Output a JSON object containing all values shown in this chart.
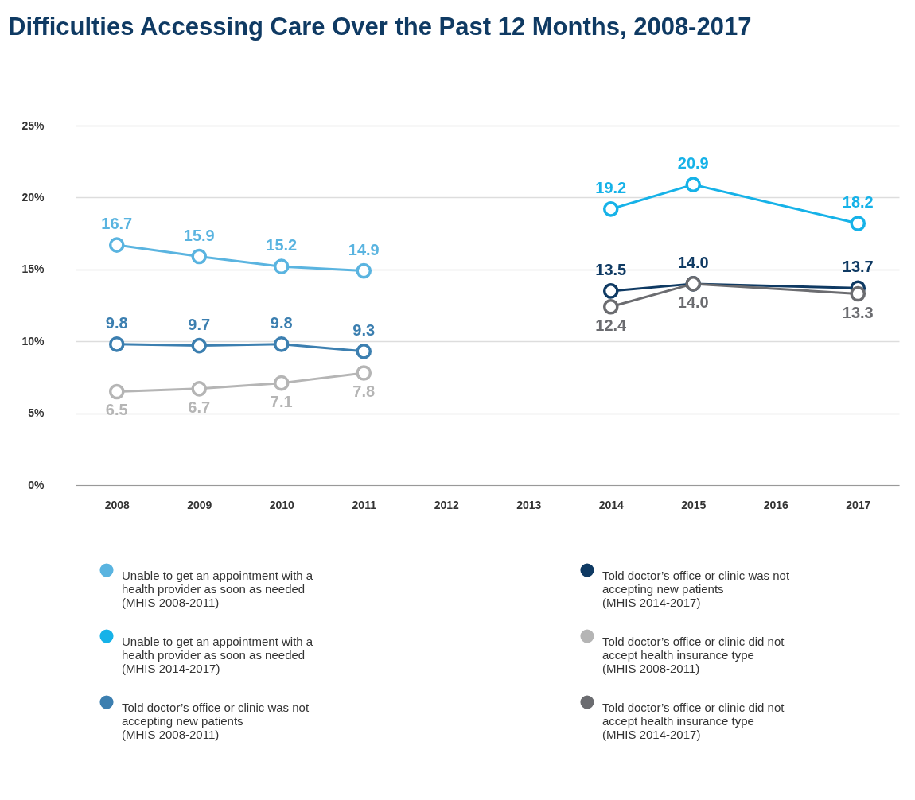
{
  "chart_data": {
    "type": "line",
    "title": "Difficulties Accessing Care Over the Past 12 Months, 2008-2017",
    "xlim": [
      2007.5,
      2017.5
    ],
    "xticks": [
      2008,
      2009,
      2010,
      2011,
      2012,
      2013,
      2014,
      2015,
      2016,
      2017
    ],
    "ylim": [
      0,
      25
    ],
    "yticks": [
      {
        "value": 0,
        "label": "0%"
      },
      {
        "value": 5,
        "label": "5%"
      },
      {
        "value": 10,
        "label": "10%"
      },
      {
        "value": 15,
        "label": "15%"
      },
      {
        "value": 20,
        "label": "20%"
      },
      {
        "value": 25,
        "label": "25%"
      }
    ],
    "grid": "y",
    "legend": "bottom",
    "marker": "circle",
    "line_style": "solid",
    "series": [
      {
        "name": "Unable to get an appointment with a health provider as soon as needed (MHIS 2008-2011)",
        "color": "#5ab4e0",
        "x": [
          2008,
          2009,
          2010,
          2011
        ],
        "values": [
          16.7,
          15.9,
          15.2,
          14.9
        ],
        "value_labels": [
          "16.7",
          "15.9",
          "15.2",
          "14.9"
        ]
      },
      {
        "name": "Unable to get an appointment with a health provider as soon as needed (MHIS 2014-2017)",
        "color": "#16b2e8",
        "x": [
          2014,
          2015,
          2017
        ],
        "values": [
          19.2,
          20.9,
          18.2
        ],
        "value_labels": [
          "19.2",
          "20.9",
          "18.2"
        ]
      },
      {
        "name": "Told doctor’s office or clinic was not accepting new patients (MHIS 2008-2011)",
        "color": "#3c7fb0",
        "x": [
          2008,
          2009,
          2010,
          2011
        ],
        "values": [
          9.8,
          9.7,
          9.8,
          9.3
        ],
        "value_labels": [
          "9.8",
          "9.7",
          "9.8",
          "9.3"
        ]
      },
      {
        "name": "Told doctor’s office or clinic was not accepting new patients (MHIS 2014-2017)",
        "color": "#0f3a63",
        "x": [
          2014,
          2015,
          2017
        ],
        "values": [
          13.5,
          14.0,
          13.7
        ],
        "value_labels": [
          "13.5",
          "14.0",
          "13.7"
        ]
      },
      {
        "name": "Told doctor’s office or clinic did not accept health insurance type (MHIS 2008-2011)",
        "color": "#b5b5b5",
        "x": [
          2008,
          2009,
          2010,
          2011
        ],
        "values": [
          6.5,
          6.7,
          7.1,
          7.8
        ],
        "value_labels": [
          "6.5",
          "6.7",
          "7.1",
          "7.8"
        ]
      },
      {
        "name": "Told doctor’s office or clinic did not accept health insurance type (MHIS 2014-2017)",
        "color": "#6b6c70",
        "x": [
          2014,
          2015,
          2017
        ],
        "values": [
          12.4,
          14.0,
          13.3
        ],
        "value_labels": [
          "12.4",
          "14.0",
          "13.3"
        ]
      }
    ]
  }
}
